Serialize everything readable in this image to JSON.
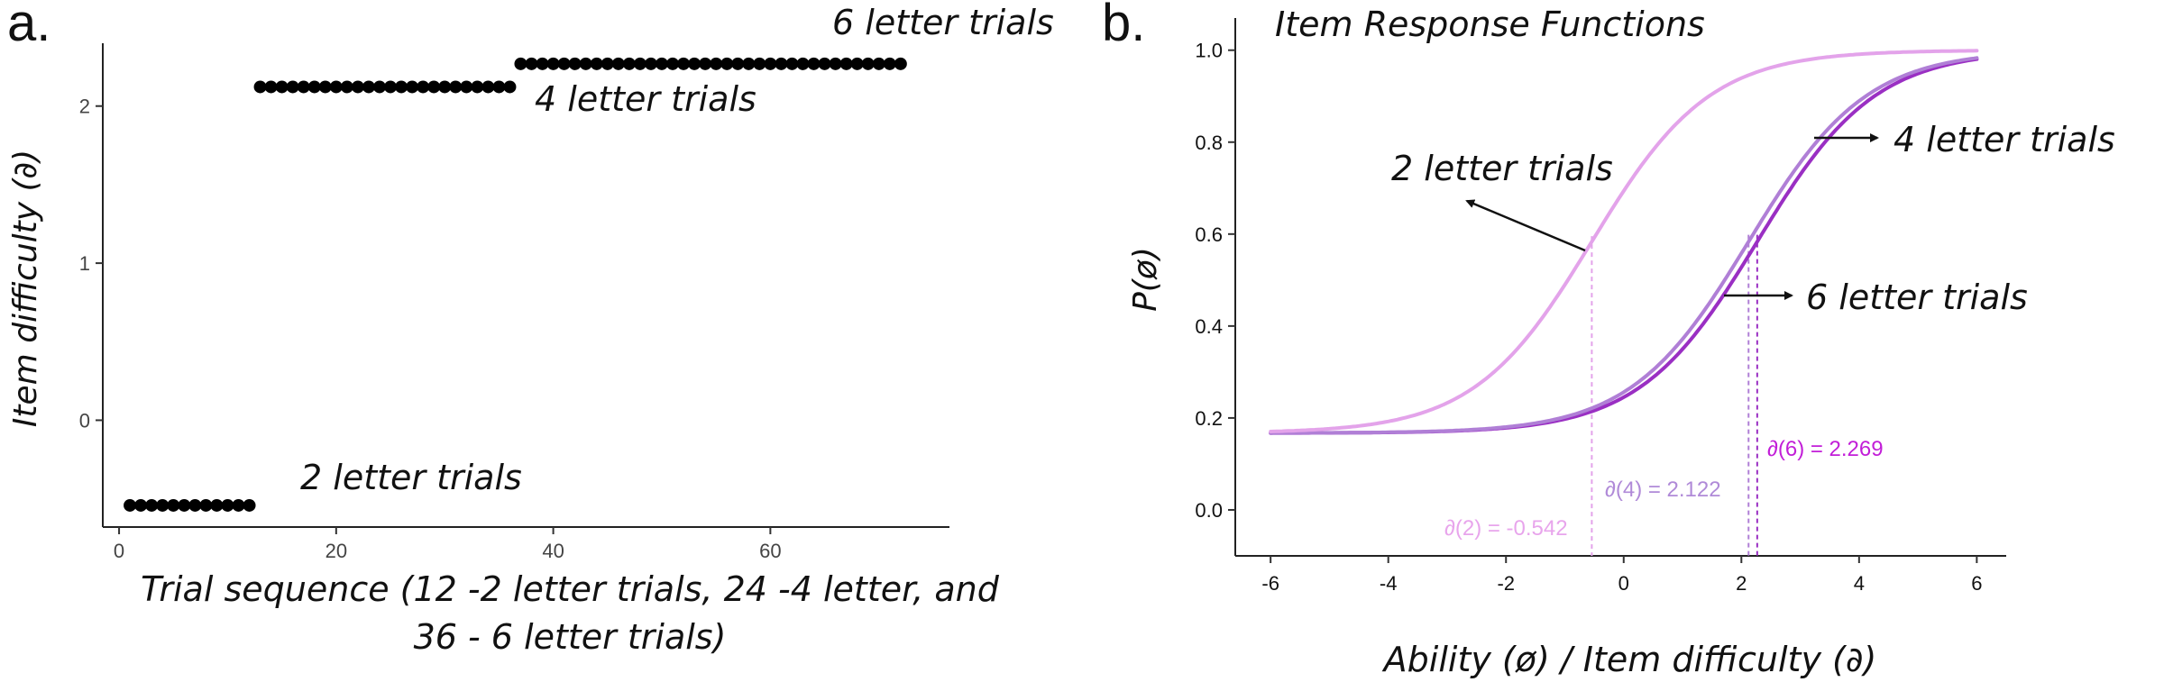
{
  "chart_data": [
    {
      "type": "scatter",
      "panel_label": "a.",
      "title": "",
      "xlabel_lines": [
        "Trial sequence (12 -2 letter trials, 24 -4 letter, and",
        "36 - 6 letter trials)"
      ],
      "ylabel": "Item difficulty (∂)",
      "xlim": [
        -1.5,
        76.5
      ],
      "ylim": [
        -0.68,
        2.4
      ],
      "xticks": [
        0,
        20,
        40,
        60
      ],
      "yticks": [
        0,
        1,
        2
      ],
      "series": [
        {
          "trials": [
            1,
            12
          ],
          "value": -0.542
        },
        {
          "trials": [
            13,
            36
          ],
          "value": 2.122
        },
        {
          "trials": [
            37,
            72
          ],
          "value": 2.269
        }
      ],
      "annotations": [
        "2 letter trials",
        "4 letter trials",
        "6 letter trials"
      ]
    },
    {
      "type": "line",
      "panel_label": "b.",
      "title": "Item Response Functions",
      "xlabel": "Ability (ø) / Item difficulty (∂)",
      "ylabel": "P(ø)",
      "xlim": [
        -6.6,
        6.5
      ],
      "ylim": [
        -0.1,
        1.07
      ],
      "xticks": [
        -6,
        -4,
        -2,
        0,
        2,
        4,
        6
      ],
      "yticks": [
        0.0,
        0.2,
        0.4,
        0.6,
        0.8,
        1.0
      ],
      "ytick_labels": [
        "0.0",
        "0.2",
        "0.4",
        "0.6",
        "0.8",
        "1.0"
      ],
      "guessing": 0.167,
      "series": [
        {
          "difficulty": -0.542,
          "color": "#e3a3ea",
          "label": "∂(2) = -0.542",
          "annotation": "2 letter trials"
        },
        {
          "difficulty": 2.122,
          "color": "#b07fd6",
          "label": "∂(4) = 2.122",
          "annotation": "4 letter trials"
        },
        {
          "difficulty": 2.269,
          "color": "#9a2fc3",
          "label": "∂(6) = 2.269",
          "annotation": "6 letter trials"
        }
      ],
      "colors": {
        "label2": "#e8a5ec",
        "label4": "#b08ad8",
        "label6": "#c21ed8"
      }
    }
  ]
}
